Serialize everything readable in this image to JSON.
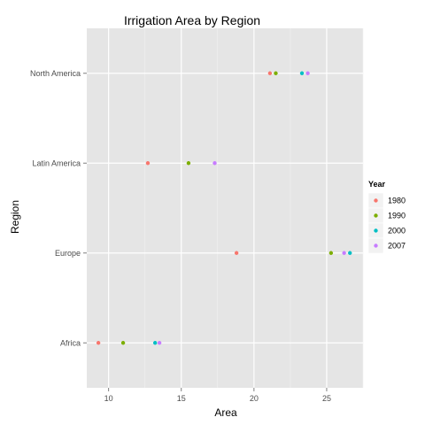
{
  "chart_data": {
    "type": "scatter",
    "title": "Irrigation Area by Region",
    "xlabel": "Area",
    "ylabel": "Region",
    "xlim": [
      8.5,
      27.5
    ],
    "x_ticks": [
      10,
      15,
      20,
      25
    ],
    "categories": [
      "Africa",
      "Europe",
      "Latin America",
      "North America"
    ],
    "grid": true,
    "legend": {
      "title": "Year",
      "position": "right"
    },
    "series": [
      {
        "name": "1980",
        "color": "#F8766D",
        "values": [
          9.3,
          18.8,
          12.7,
          21.1
        ]
      },
      {
        "name": "1990",
        "color": "#7CAE00",
        "values": [
          11.0,
          25.3,
          15.5,
          21.5
        ]
      },
      {
        "name": "2000",
        "color": "#00BFC4",
        "values": [
          13.2,
          26.6,
          null,
          23.3
        ]
      },
      {
        "name": "2007",
        "color": "#C77CFF",
        "values": [
          13.5,
          26.2,
          17.3,
          23.7
        ]
      }
    ]
  }
}
